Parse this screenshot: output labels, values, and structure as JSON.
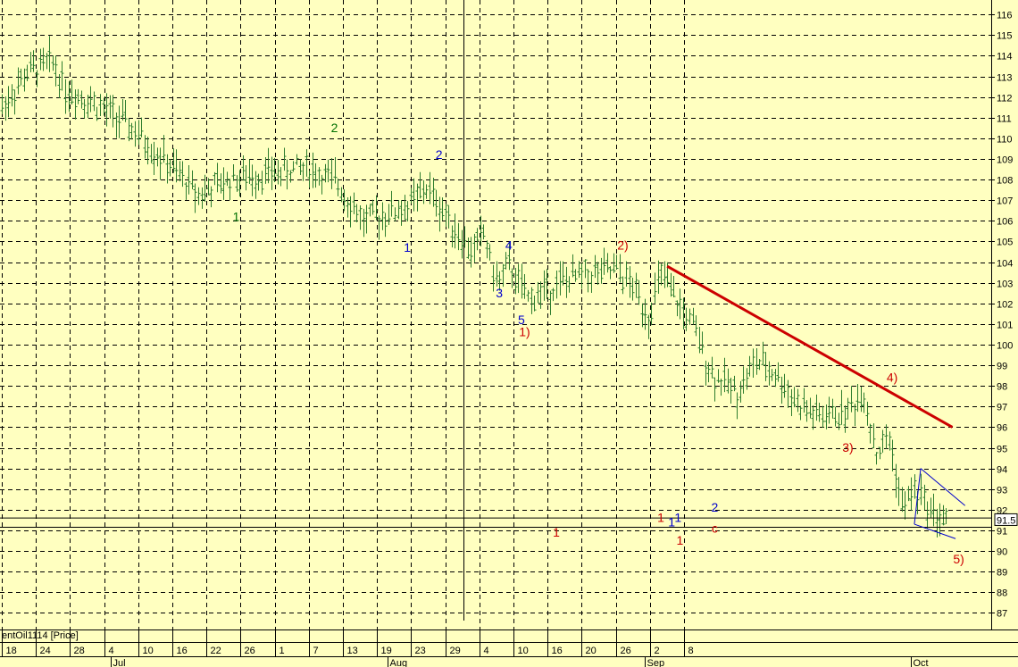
{
  "chart_data": {
    "type": "ohlc-bar",
    "symbol_label": "entOil1114 [Price]",
    "last_price_label": "91.5",
    "ylim": [
      86.5,
      116.7
    ],
    "y_ticks": [
      87,
      88,
      89,
      90,
      91,
      92,
      93,
      94,
      95,
      96,
      97,
      98,
      99,
      100,
      101,
      102,
      103,
      104,
      105,
      106,
      107,
      108,
      109,
      110,
      111,
      112,
      113,
      114,
      115,
      116
    ],
    "x_day_ticks": [
      "18",
      "24",
      "28",
      "4",
      "10",
      "16",
      "22",
      "26",
      "1",
      "7",
      "13",
      "19",
      "23",
      "29",
      "4",
      "10",
      "16",
      "20",
      "26",
      "2",
      "8"
    ],
    "x_month_labels": [
      "Jul",
      "Aug",
      "Sep",
      "Oct"
    ],
    "grid": true,
    "close_path": [
      {
        "day": 0,
        "close": 111.5
      },
      {
        "day": 4,
        "close": 113.2
      },
      {
        "day": 8,
        "close": 113.7
      },
      {
        "day": 10,
        "close": 112.4
      },
      {
        "day": 14,
        "close": 111.8
      },
      {
        "day": 20,
        "close": 110.6
      },
      {
        "day": 27,
        "close": 108.5
      },
      {
        "day": 31,
        "close": 107.3
      },
      {
        "day": 36,
        "close": 108.0
      },
      {
        "day": 44,
        "close": 108.4
      },
      {
        "day": 48,
        "close": 108.6
      },
      {
        "day": 53,
        "close": 107.8
      },
      {
        "day": 57,
        "close": 106.0
      },
      {
        "day": 60,
        "close": 106.3
      },
      {
        "day": 64,
        "close": 106.7
      },
      {
        "day": 67,
        "close": 107.6
      },
      {
        "day": 70,
        "close": 106.3
      },
      {
        "day": 74,
        "close": 104.5
      },
      {
        "day": 76,
        "close": 105.4
      },
      {
        "day": 78,
        "close": 103.0
      },
      {
        "day": 80,
        "close": 103.8
      },
      {
        "day": 83,
        "close": 102.2
      },
      {
        "day": 88,
        "close": 103.0
      },
      {
        "day": 92,
        "close": 103.4
      },
      {
        "day": 97,
        "close": 103.6
      },
      {
        "day": 100,
        "close": 102.6
      },
      {
        "day": 102,
        "close": 101.4
      },
      {
        "day": 104,
        "close": 103.4
      },
      {
        "day": 106,
        "close": 102.3
      },
      {
        "day": 109,
        "close": 100.9
      },
      {
        "day": 112,
        "close": 98.6
      },
      {
        "day": 116,
        "close": 97.7
      },
      {
        "day": 119,
        "close": 99.2
      },
      {
        "day": 122,
        "close": 98.6
      },
      {
        "day": 126,
        "close": 97.0
      },
      {
        "day": 129,
        "close": 96.5
      },
      {
        "day": 133,
        "close": 96.7
      },
      {
        "day": 136,
        "close": 97.6
      },
      {
        "day": 138,
        "close": 94.7
      },
      {
        "day": 140,
        "close": 95.5
      },
      {
        "day": 142,
        "close": 92.1
      },
      {
        "day": 144,
        "close": 93.0
      },
      {
        "day": 147,
        "close": 91.8
      },
      {
        "day": 149,
        "close": 91.5
      }
    ],
    "hlines": [
      91.6,
      91.15
    ],
    "trendlines": [
      {
        "from": {
          "day": 105,
          "price": 103.8
        },
        "to": {
          "day": 150,
          "price": 96.0
        },
        "color": "#cc0000"
      }
    ],
    "channel": [
      {
        "from": {
          "day": 145,
          "price": 94.0
        },
        "to": {
          "day": 152,
          "price": 92.2
        }
      },
      {
        "from": {
          "day": 144,
          "price": 91.3
        },
        "to": {
          "day": 150.5,
          "price": 90.6
        }
      }
    ],
    "wave_labels": [
      {
        "text": "1",
        "day": 37,
        "price": 106.0,
        "color": "#007000"
      },
      {
        "text": "2",
        "day": 52.5,
        "price": 110.3,
        "color": "#007000"
      },
      {
        "text": "1",
        "day": 64,
        "price": 104.5,
        "color": "#0000cc"
      },
      {
        "text": "2",
        "day": 69,
        "price": 109.0,
        "color": "#0000cc"
      },
      {
        "text": "3",
        "day": 78.5,
        "price": 102.3,
        "color": "#0000cc"
      },
      {
        "text": "4",
        "day": 80,
        "price": 104.6,
        "color": "#0000cc"
      },
      {
        "text": "5",
        "day": 82,
        "price": 101.0,
        "color": "#0000cc"
      },
      {
        "text": "1)",
        "day": 82.5,
        "price": 100.4,
        "color": "#cc0000"
      },
      {
        "text": "2)",
        "day": 98,
        "price": 104.6,
        "color": "#cc0000"
      },
      {
        "text": "1",
        "day": 87.5,
        "price": 90.7,
        "color": "#cc0000"
      },
      {
        "text": "1",
        "day": 104,
        "price": 91.4,
        "color": "#cc0000"
      },
      {
        "text": "1",
        "day": 105.7,
        "price": 91.2,
        "color": "#0000cc"
      },
      {
        "text": "1",
        "day": 106.7,
        "price": 91.4,
        "color": "#0000cc"
      },
      {
        "text": "1",
        "day": 107,
        "price": 90.3,
        "color": "#cc0000"
      },
      {
        "text": "2",
        "day": 112.5,
        "price": 91.9,
        "color": "#0000cc"
      },
      {
        "text": "c",
        "day": 112.5,
        "price": 90.9,
        "color": "#cc0000"
      },
      {
        "text": "3)",
        "day": 133.5,
        "price": 94.8,
        "color": "#cc0000"
      },
      {
        "text": "4)",
        "day": 140.5,
        "price": 98.2,
        "color": "#cc0000"
      },
      {
        "text": "5)",
        "day": 151,
        "price": 89.4,
        "color": "#cc0000"
      }
    ],
    "colors": {
      "background": "#ffffc0",
      "grid": "#000000",
      "bars": "#2e7d2e",
      "trendline": "#cc0000",
      "channel": "#0000cc",
      "hline": "#000000"
    }
  }
}
